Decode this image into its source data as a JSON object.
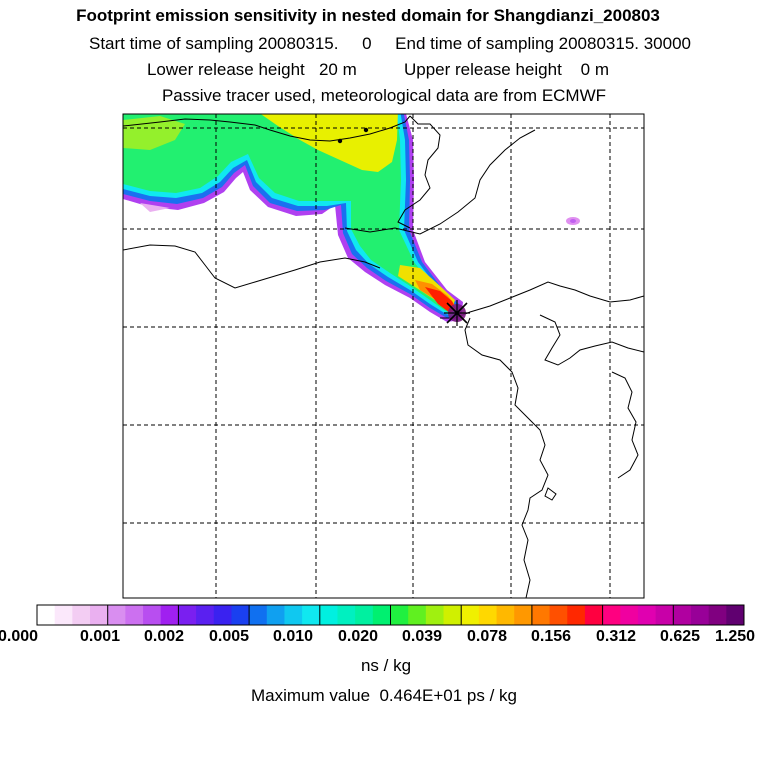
{
  "header": {
    "title": "Footprint emission sensitivity in nested domain for Shangdianzi_200803",
    "sampling_line": "Start time of sampling 20080315.     0     End time of sampling 20080315. 30000",
    "release_line": "Lower release height   20 m          Upper release height    0 m",
    "tracer_line": "Passive tracer used, meteorological data are from ECMWF"
  },
  "legend": {
    "labels": [
      "0.000",
      "0.001",
      "0.002",
      "0.005",
      "0.010",
      "0.020",
      "0.039",
      "0.078",
      "0.156",
      "0.312",
      "0.625",
      "1.250"
    ],
    "colors": [
      [
        "#ffffff",
        "#fbe8fb",
        "#f3cdf3",
        "#eab0f0"
      ],
      [
        "#d98ef0",
        "#cc70f0",
        "#b84ef0",
        "#a020f0"
      ],
      [
        "#7a1ff0",
        "#5a20f0",
        "#3a22f0",
        "#1a40f0"
      ],
      [
        "#1070f0",
        "#10a0f0",
        "#10c8f0",
        "#10e8f0"
      ],
      [
        "#00f0e0",
        "#00f0c0",
        "#00f0a0",
        "#00f070"
      ],
      [
        "#20f040",
        "#60f020",
        "#a0f010",
        "#d0f000"
      ],
      [
        "#f0f000",
        "#ffd800",
        "#ffb800",
        "#ff9800"
      ],
      [
        "#ff7800",
        "#ff5000",
        "#ff2800",
        "#ff0040"
      ],
      [
        "#ff0080",
        "#f000a0",
        "#e000b0",
        "#c800a8"
      ],
      [
        "#b000a0",
        "#980098",
        "#800080",
        "#600070"
      ]
    ],
    "units": "ns / kg",
    "max_value": "Maximum value  0.464E+01 ps / kg"
  },
  "map": {
    "receptor_marker": "star-x-marker",
    "sensitivity_colors": {
      "green": "#22f070",
      "cyan": "#10e8f0",
      "yellow": "#f0f000",
      "violet": "#a020f0",
      "red": "#ff2000",
      "purple": "#7a1a80"
    }
  }
}
